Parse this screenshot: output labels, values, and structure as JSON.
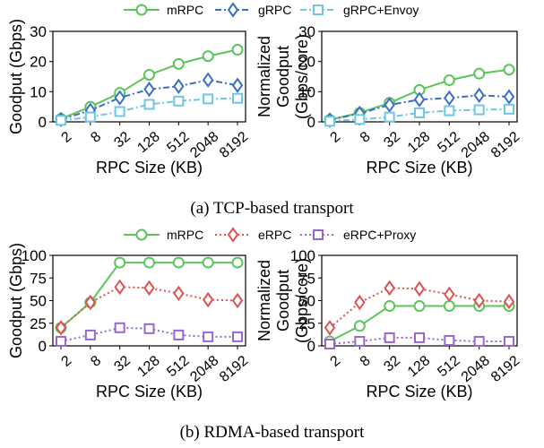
{
  "colors": {
    "mRPC": "#5cc45c",
    "gRPC": "#3a6fc4",
    "envoy": "#6fc6e0",
    "eRPC": "#de5252",
    "proxy": "#9966cc"
  },
  "captions": {
    "a": "(a) TCP-based transport",
    "b": "(b) RDMA-based transport"
  },
  "chart_data": [
    {
      "type": "line",
      "group": "tcp",
      "categories": [
        "2",
        "8",
        "32",
        "128",
        "512",
        "2048",
        "8192"
      ],
      "xlabel": "RPC Size (KB)",
      "ylabel": [
        "Goodput (Gbps)"
      ],
      "ylim": [
        0,
        30
      ],
      "yticks": [
        0,
        10,
        20,
        30
      ],
      "legend": "top",
      "series": [
        {
          "name": "mRPC",
          "color": "#5cc45c",
          "marker": "circle",
          "dash": "solid",
          "values": [
            1.0,
            5.0,
            9.6,
            15.6,
            19.2,
            21.8,
            23.9
          ]
        },
        {
          "name": "gRPC",
          "color": "#3a6fc4",
          "marker": "diamond",
          "dash": "dashdot",
          "values": [
            0.8,
            3.8,
            8.0,
            10.8,
            11.8,
            13.9,
            12.1
          ]
        },
        {
          "name": "gRPC+Envoy",
          "color": "#6fc6e0",
          "marker": "square",
          "dash": "dashdot",
          "values": [
            0.5,
            1.6,
            3.4,
            5.8,
            6.9,
            7.6,
            7.8
          ]
        }
      ]
    },
    {
      "type": "line",
      "group": "tcp",
      "categories": [
        "2",
        "8",
        "32",
        "128",
        "512",
        "2048",
        "8192"
      ],
      "xlabel": "RPC Size (KB)",
      "ylabel": [
        "Normalized",
        "Goodput",
        "(Gbps/core)"
      ],
      "ylim": [
        0,
        30
      ],
      "yticks": [
        0,
        10,
        20,
        30
      ],
      "series": [
        {
          "name": "mRPC",
          "color": "#5cc45c",
          "marker": "circle",
          "dash": "solid",
          "values": [
            0.7,
            3.0,
            6.3,
            10.6,
            13.8,
            16.0,
            17.3
          ]
        },
        {
          "name": "gRPC",
          "color": "#3a6fc4",
          "marker": "diamond",
          "dash": "dashdot",
          "values": [
            0.6,
            2.8,
            5.6,
            7.4,
            7.9,
            8.8,
            8.3
          ]
        },
        {
          "name": "gRPC+Envoy",
          "color": "#6fc6e0",
          "marker": "square",
          "dash": "dashdot",
          "values": [
            0.2,
            0.8,
            1.6,
            3.0,
            3.7,
            4.0,
            4.2
          ]
        }
      ]
    },
    {
      "type": "line",
      "group": "rdma",
      "categories": [
        "2",
        "8",
        "32",
        "128",
        "512",
        "2048",
        "8192"
      ],
      "xlabel": "RPC Size (KB)",
      "ylabel": [
        "Goodput (Gbps)"
      ],
      "ylim": [
        0,
        100
      ],
      "yticks": [
        0,
        25,
        50,
        75,
        100
      ],
      "legend": "top",
      "series": [
        {
          "name": "mRPC",
          "color": "#5cc45c",
          "marker": "circle",
          "dash": "solid",
          "values": [
            20,
            48,
            92,
            92,
            92,
            92,
            92
          ]
        },
        {
          "name": "eRPC",
          "color": "#de5252",
          "marker": "diamond",
          "dash": "dotted",
          "values": [
            20,
            48,
            65,
            64,
            58,
            51,
            50
          ]
        },
        {
          "name": "eRPC+Proxy",
          "color": "#9966cc",
          "marker": "square",
          "dash": "dotted",
          "values": [
            5,
            12,
            20,
            19,
            12,
            10,
            10
          ]
        }
      ]
    },
    {
      "type": "line",
      "group": "rdma",
      "categories": [
        "2",
        "8",
        "32",
        "128",
        "512",
        "2048",
        "8192"
      ],
      "xlabel": "RPC Size (KB)",
      "ylabel": [
        "Normalized",
        "Goodput",
        "(Gbps/core)"
      ],
      "ylim": [
        0,
        100
      ],
      "yticks": [
        0,
        25,
        50,
        75,
        100
      ],
      "series": [
        {
          "name": "mRPC",
          "color": "#5cc45c",
          "marker": "circle",
          "dash": "solid",
          "values": [
            5,
            22,
            44,
            44,
            44,
            44,
            44
          ]
        },
        {
          "name": "eRPC",
          "color": "#de5252",
          "marker": "diamond",
          "dash": "dotted",
          "values": [
            20,
            48,
            64,
            63,
            57,
            50,
            49
          ]
        },
        {
          "name": "eRPC+Proxy",
          "color": "#9966cc",
          "marker": "square",
          "dash": "dotted",
          "values": [
            2,
            5,
            9,
            9,
            6,
            5,
            5
          ]
        }
      ]
    }
  ]
}
